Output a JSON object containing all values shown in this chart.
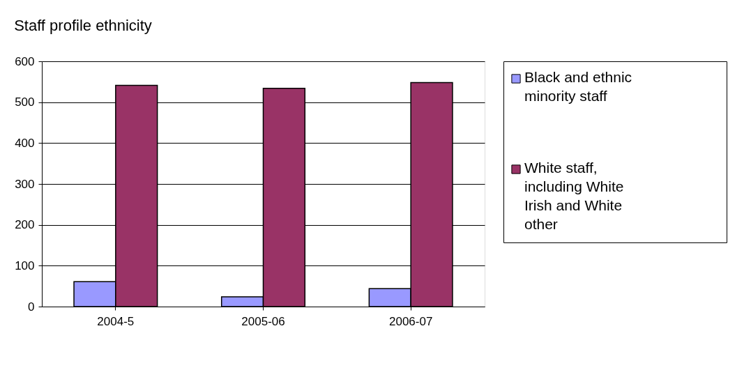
{
  "chart_data": {
    "type": "bar",
    "title": "Staff profile ethnicity",
    "categories": [
      "2004-5",
      "2005-06",
      "2006-07"
    ],
    "series": [
      {
        "name": "Black and ethnic minority staff",
        "color": "#9999ff",
        "values": [
          61,
          24,
          44
        ]
      },
      {
        "name": "White staff, including White Irish and White other",
        "color": "#993366",
        "values": [
          541,
          534,
          548
        ]
      }
    ],
    "ylim": [
      0,
      600
    ],
    "yticks": [
      0,
      100,
      200,
      300,
      400,
      500,
      600
    ],
    "grid": "y",
    "legend": "right"
  }
}
